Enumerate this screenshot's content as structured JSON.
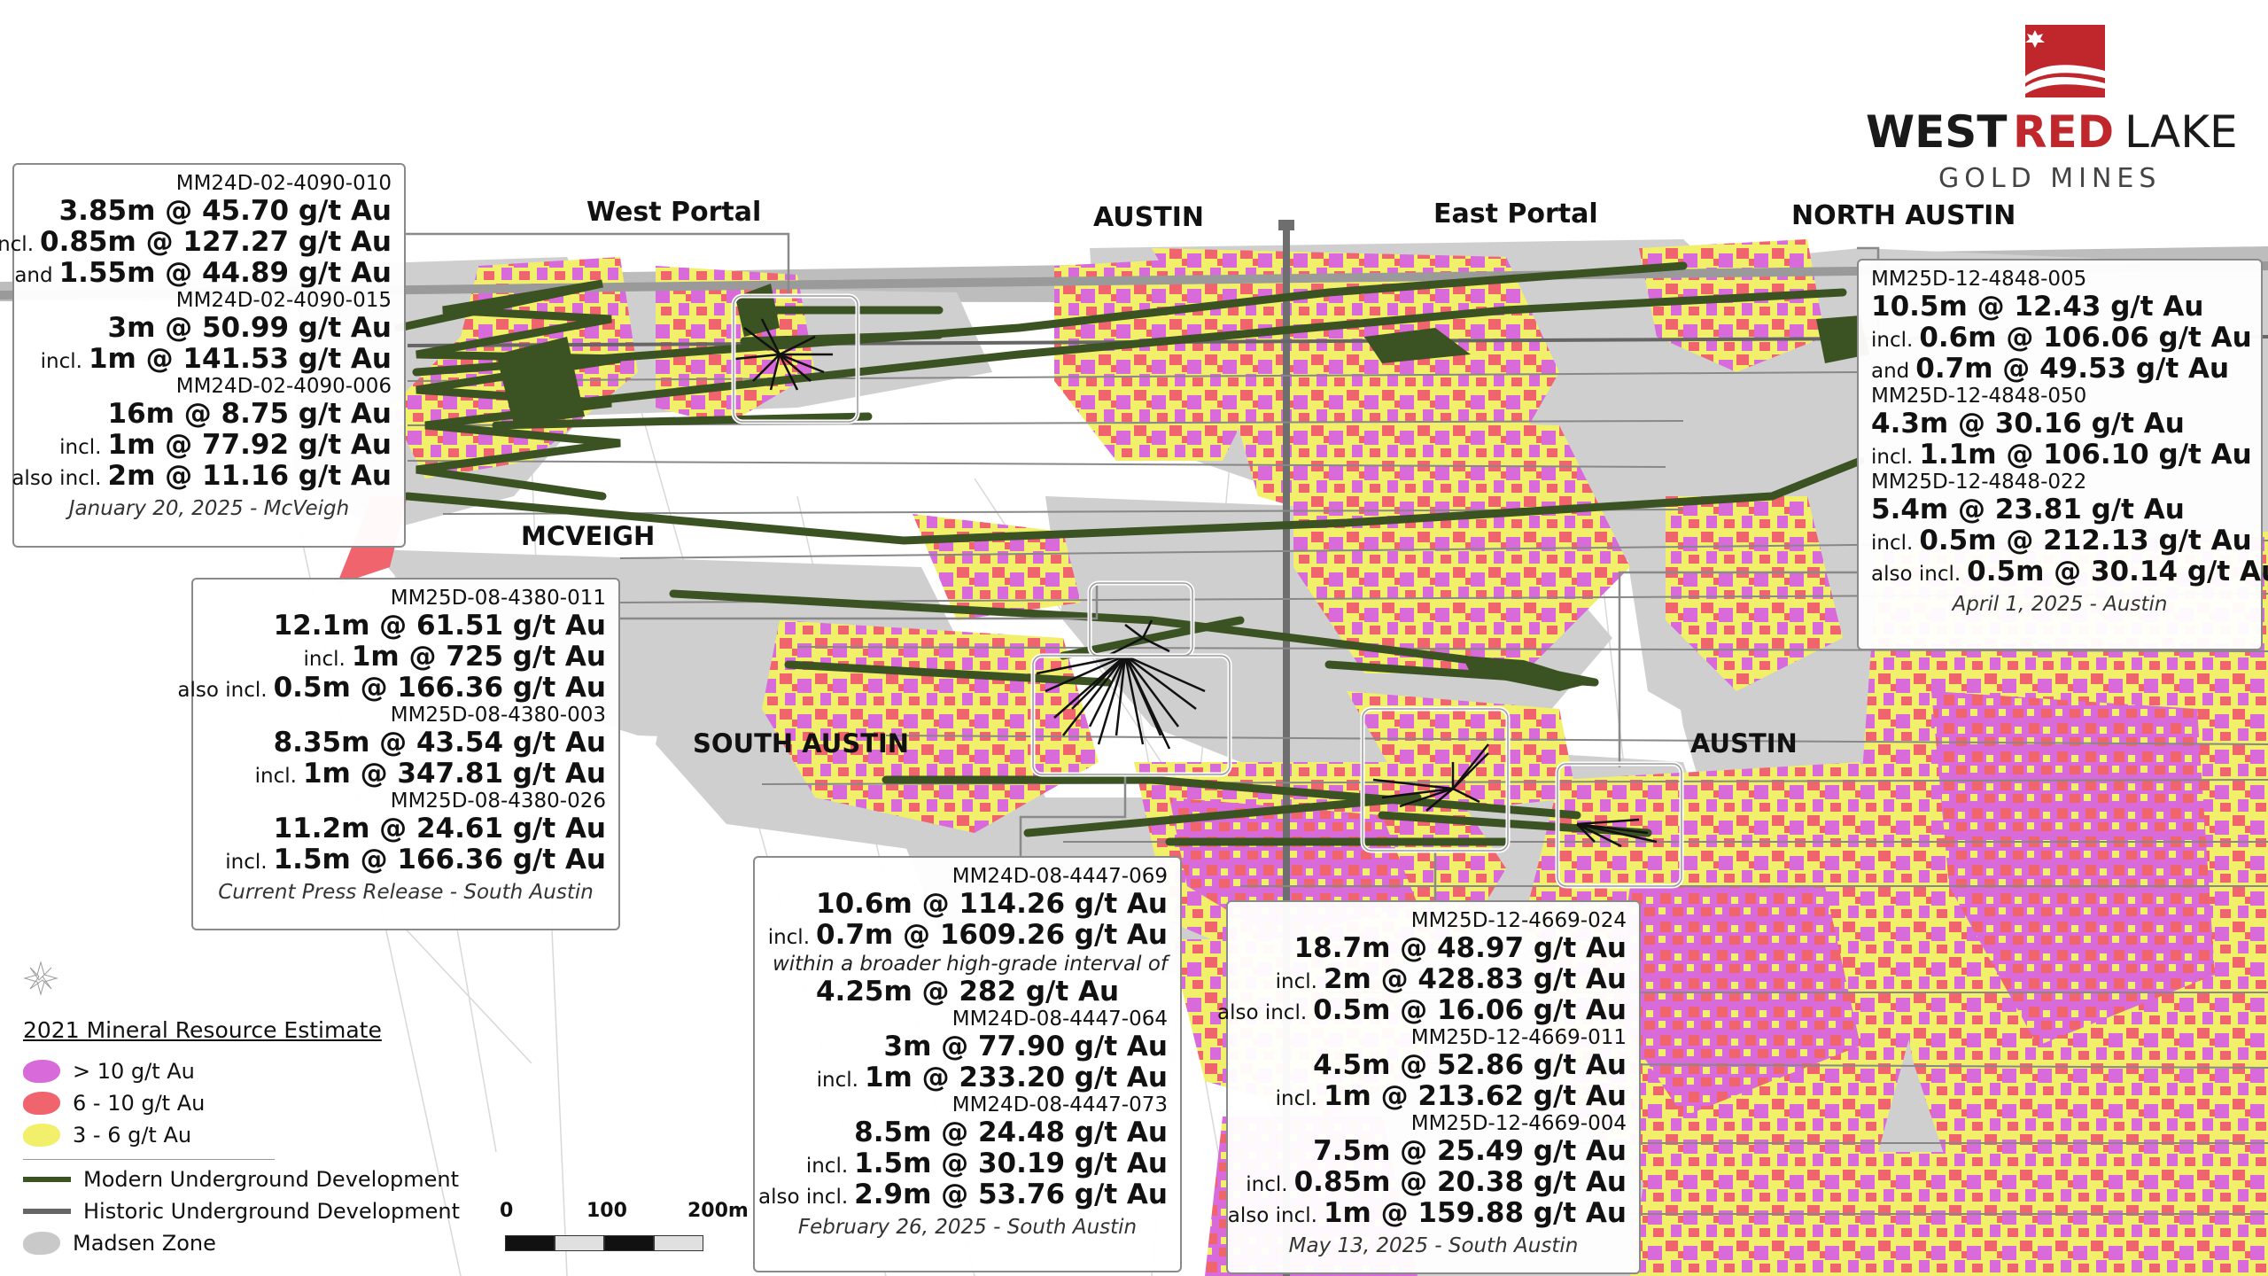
{
  "zone_labels": {
    "west_portal": "West Portal",
    "austin_top": "AUSTIN",
    "east_portal": "East Portal",
    "north_austin": "NORTH AUSTIN",
    "mcveigh": "MCVEIGH",
    "south_austin": "SOUTH AUSTIN",
    "austin_mid": "AUSTIN"
  },
  "logo": {
    "word1": "WEST",
    "word2": "RED",
    "word3": "LAKE",
    "subtitle": "GOLD MINES",
    "brand_color": "#c0272d",
    "text_color": "#1a1a1a"
  },
  "callouts": {
    "mcveigh": {
      "h1": "MM24D-02-4090-010",
      "r1": "3.85m @ 45.70 g/t Au",
      "p2": "incl.",
      "r2": "0.85m @ 127.27 g/t Au",
      "p3": "and",
      "r3": "1.55m @ 44.89 g/t Au",
      "h2": "MM24D-02-4090-015",
      "r4": "3m @ 50.99 g/t Au",
      "p5": "incl.",
      "r5": "1m @ 141.53 g/t Au",
      "h3": "MM24D-02-4090-006",
      "r6": "16m @ 8.75 g/t Au",
      "p7": "incl.",
      "r7": "1m @ 77.92 g/t Au",
      "p8": "also incl.",
      "r8": "2m @ 11.16 g/t Au",
      "date": "January 20, 2025 - McVeigh"
    },
    "north_austin": {
      "h1": "MM25D-12-4848-005",
      "r1": "10.5m @ 12.43 g/t Au",
      "p2": "incl.",
      "r2": "0.6m @ 106.06 g/t Au",
      "p3": "and",
      "r3": "0.7m @ 49.53 g/t Au",
      "h2": "MM25D-12-4848-050",
      "r4": "4.3m @ 30.16 g/t Au",
      "p5": "incl.",
      "r5": "1.1m @ 106.10 g/t Au",
      "h3": "MM25D-12-4848-022",
      "r6": "5.4m @ 23.81 g/t Au",
      "p7": "incl.",
      "r7": "0.5m @ 212.13 g/t Au",
      "p8": "also incl.",
      "r8": "0.5m @ 30.14 g/t Au",
      "date": "April 1, 2025 - Austin"
    },
    "south_austin": {
      "h1": "MM25D-08-4380-011",
      "r1": "12.1m @ 61.51 g/t Au",
      "p2": "incl.",
      "r2": "1m @ 725 g/t Au",
      "p3": "also incl.",
      "r3": "0.5m @ 166.36 g/t Au",
      "h2": "MM25D-08-4380-003",
      "r4": "8.35m @ 43.54 g/t Au",
      "p5": "incl.",
      "r5": "1m @ 347.81 g/t Au",
      "h3": "MM25D-08-4380-026",
      "r6": "11.2m @ 24.61 g/t Au",
      "p7": "incl.",
      "r7": "1.5m @ 166.36 g/t Au",
      "date": "Current Press Release - South Austin"
    },
    "feb": {
      "h1": "MM24D-08-4447-069",
      "r1": "10.6m @ 114.26 g/t Au",
      "p2": "incl.",
      "r2": "0.7m @ 1609.26 g/t Au",
      "note": "within a broader high-grade interval of",
      "r3": "4.25m @ 282 g/t Au",
      "h2": "MM24D-08-4447-064",
      "r4": "3m @ 77.90 g/t Au",
      "p5": "incl.",
      "r5": "1m @ 233.20 g/t Au",
      "h3": "MM24D-08-4447-073",
      "r6": "8.5m @ 24.48 g/t Au",
      "p7": "incl.",
      "r7": "1.5m @ 30.19 g/t Au",
      "p8": "also incl.",
      "r8": "2.9m @ 53.76 g/t Au",
      "date": "February 26, 2025 - South Austin"
    },
    "may": {
      "h1": "MM25D-12-4669-024",
      "r1": "18.7m @ 48.97 g/t Au",
      "p2": "incl.",
      "r2": "2m @ 428.83 g/t Au",
      "p3": "also incl.",
      "r3": "0.5m @ 16.06 g/t Au",
      "h2": "MM25D-12-4669-011",
      "r4": "4.5m @ 52.86 g/t Au",
      "p5": "incl.",
      "r5": "1m @ 213.62 g/t Au",
      "h3": "MM25D-12-4669-004",
      "r6": "7.5m @ 25.49 g/t Au",
      "p7": "incl.",
      "r7": "0.85m @ 20.38 g/t Au",
      "p8": "also incl.",
      "r8": "1m @ 159.88 g/t Au",
      "date": "May 13, 2025 - South Austin"
    }
  },
  "legend": {
    "title": "2021 Mineral Resource Estimate",
    "grade_high": "> 10 g/t Au",
    "grade_mid": "6 - 10 g/t Au",
    "grade_low": "3 - 6 g/t Au",
    "modern": "Modern Underground Development",
    "historic": "Historic Underground Development",
    "zone": "Madsen Zone"
  },
  "scale_bar": {
    "l0": "0",
    "l1": "100",
    "l2": "200m"
  },
  "colors": {
    "high_grade": "#d96ad9",
    "mid_grade": "#f0646e",
    "low_grade": "#f2ef6a",
    "madsen_zone": "#c9c9c9",
    "modern_dev": "#3b5323",
    "historic_dev": "#666666",
    "callout_border": "#8a8a8a"
  }
}
